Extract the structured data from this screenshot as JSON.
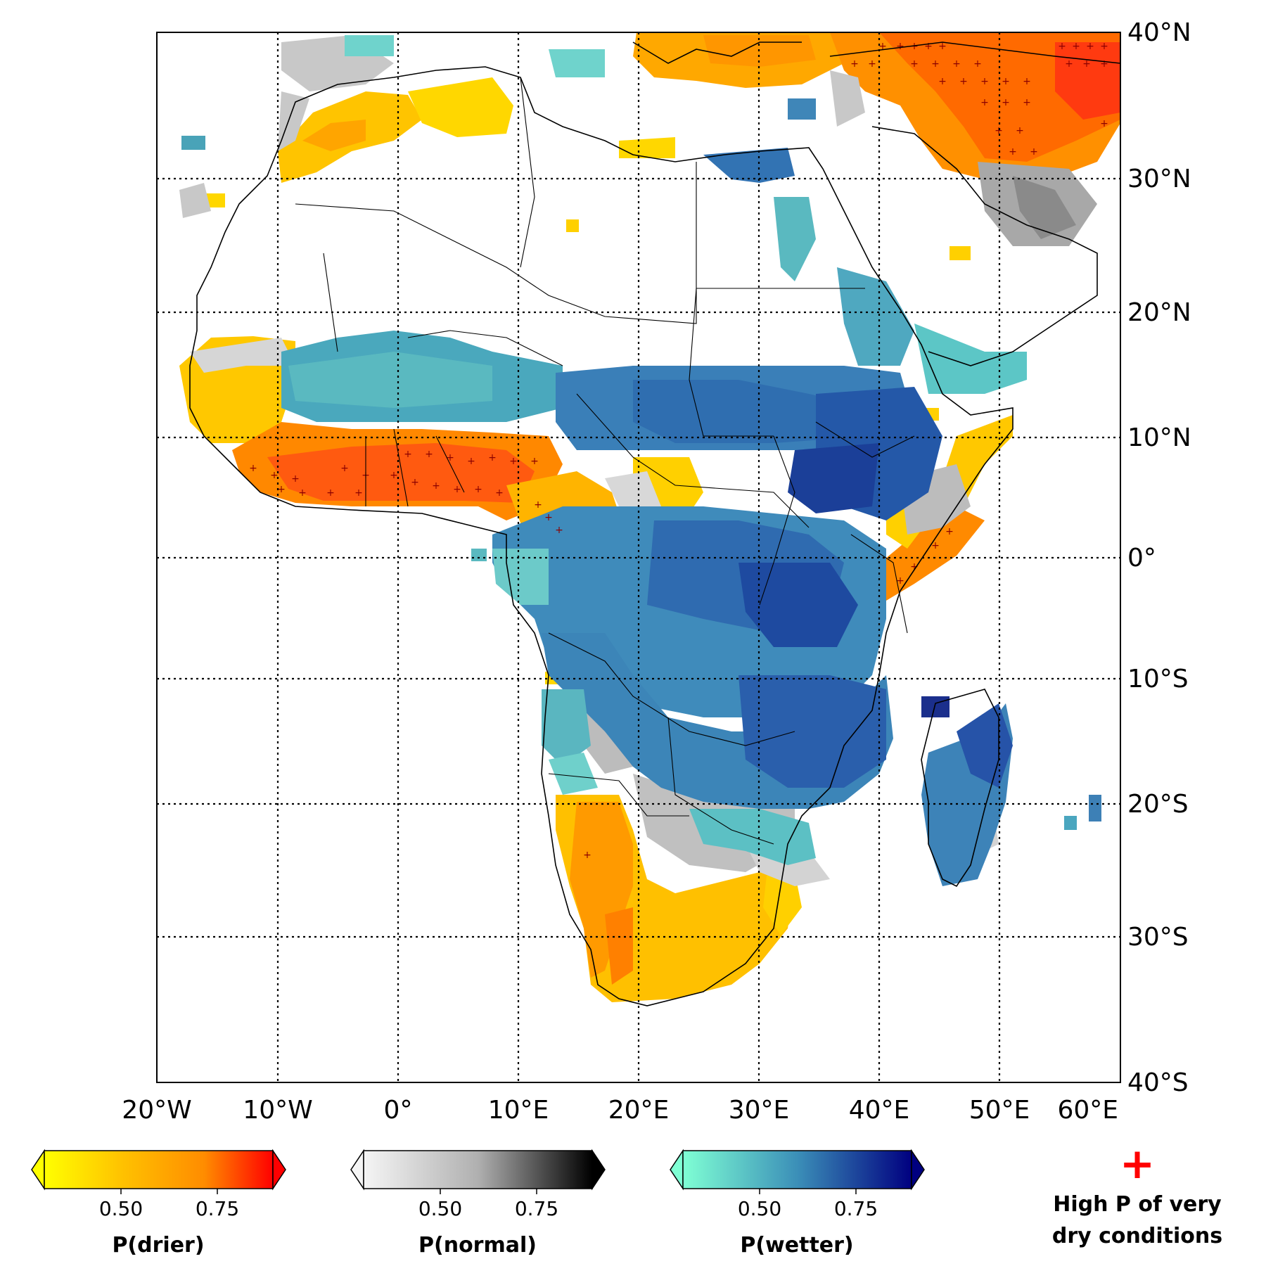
{
  "map": {
    "lat_labels": [
      "40°N",
      "30°N",
      "20°N",
      "10°N",
      "0°",
      "10°S",
      "20°S",
      "30°S",
      "40°S"
    ],
    "lon_labels": [
      "20°W",
      "10°W",
      "0°",
      "10°E",
      "20°E",
      "30°E",
      "40°E",
      "50°E",
      "60°E"
    ],
    "extent": {
      "lon_min": -20,
      "lon_max": 60,
      "lat_min": -40,
      "lat_max": 40
    }
  },
  "legend": {
    "drier": {
      "label": "P(drier)",
      "ticks": [
        "0.50",
        "0.75"
      ],
      "colors": [
        "#ffff00",
        "#ffc000",
        "#ff8c00",
        "#ff0000"
      ]
    },
    "normal": {
      "label": "P(normal)",
      "ticks": [
        "0.50",
        "0.75"
      ],
      "colors": [
        "#f5f5f5",
        "#b0b0b0",
        "#000000"
      ]
    },
    "wetter": {
      "label": "P(wetter)",
      "ticks": [
        "0.50",
        "0.75"
      ],
      "colors": [
        "#7fffd4",
        "#3b8fb8",
        "#000080"
      ]
    },
    "marker": {
      "symbol": "+",
      "line1": "High P of very",
      "line2": "dry conditions",
      "color": "#ff0000"
    }
  }
}
